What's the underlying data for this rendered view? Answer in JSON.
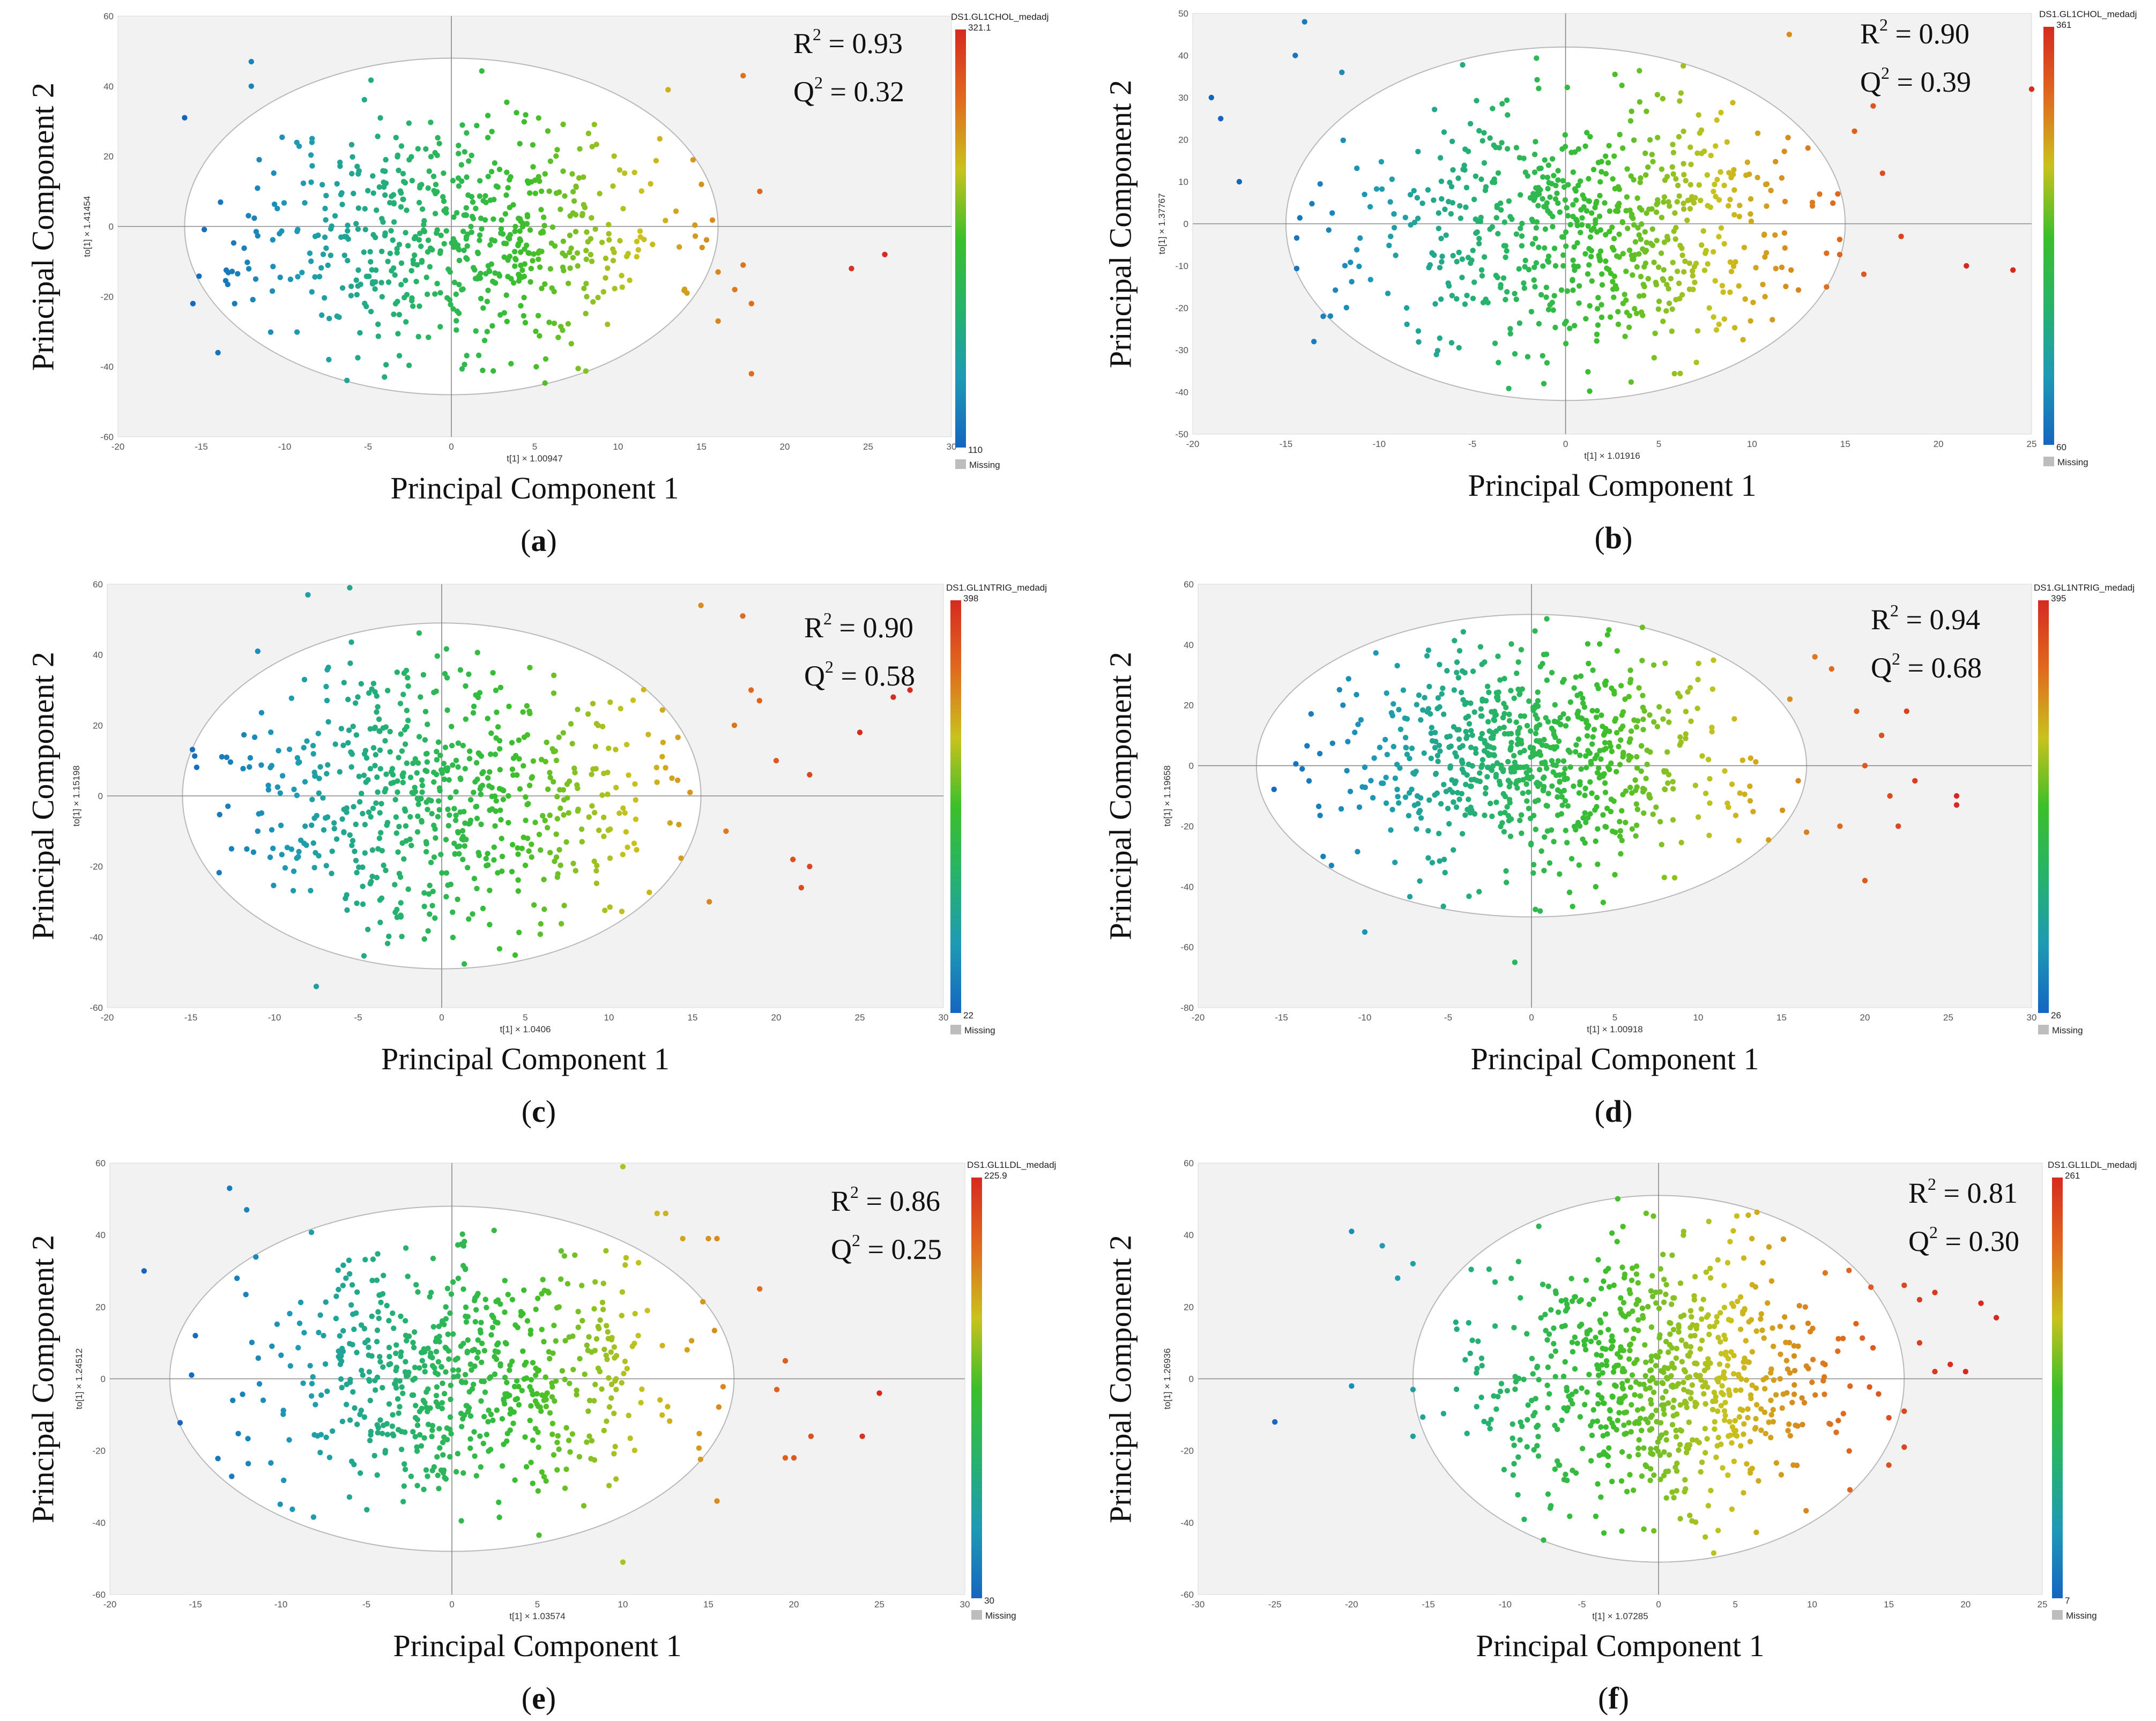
{
  "colors": {
    "plot_bg": "#f2f2f2",
    "ellipse": "#b8b8b8",
    "axis_line": "#888888",
    "missing": "#bdbdbd",
    "scale": [
      "#1565c0",
      "#1e9ab5",
      "#26b36a",
      "#3cbf2a",
      "#c9c21d",
      "#e06a1e",
      "#d62a20"
    ]
  },
  "chart_data": [
    {
      "id": "a",
      "type": "scatter",
      "panel_label": "a",
      "xlabel": "Principal Component 1",
      "ylabel": "Principal Component 2",
      "x_axis_caption": "t[1] × 1.00947",
      "y_axis_caption": "to[1] × 1.41454",
      "xlim": [
        -20,
        30
      ],
      "ylim": [
        -60,
        60
      ],
      "xticks": [
        -20,
        -15,
        -10,
        -5,
        0,
        5,
        10,
        15,
        20,
        25,
        30
      ],
      "yticks": [
        -60,
        -40,
        -20,
        0,
        20,
        40,
        60
      ],
      "ellipse": {
        "cx": 0,
        "cy": 0,
        "rx": 16,
        "ry": 48
      },
      "colorbar": {
        "title": "DS1.GL1CHOL_medadj",
        "max": "321.1",
        "min": "110",
        "missing": "Missing"
      },
      "r2": "0.93",
      "q2": "0.32",
      "points": {
        "n": 620,
        "seed": 11,
        "sx": 6.2,
        "sy": 17,
        "mx": 0.5,
        "my": -2
      },
      "outliers": [
        [
          -16,
          31
        ],
        [
          -15.5,
          -22
        ],
        [
          -14,
          -36
        ],
        [
          -13,
          -22
        ],
        [
          -12,
          47
        ],
        [
          -12,
          40
        ],
        [
          12.5,
          25
        ],
        [
          13,
          39
        ],
        [
          14.5,
          19
        ],
        [
          15,
          12
        ],
        [
          16,
          -13
        ],
        [
          16,
          -27
        ],
        [
          17,
          -18
        ],
        [
          17.5,
          -11
        ],
        [
          17.5,
          43
        ],
        [
          18,
          -22
        ],
        [
          18.5,
          10
        ],
        [
          18,
          -42
        ],
        [
          24,
          -12
        ],
        [
          26,
          -8
        ]
      ]
    },
    {
      "id": "b",
      "type": "scatter",
      "panel_label": "b",
      "xlabel": "Principal Component 1",
      "ylabel": "Principal Component 2",
      "x_axis_caption": "t[1] × 1.01916",
      "y_axis_caption": "to[1] × 1.37767",
      "xlim": [
        -20,
        25
      ],
      "ylim": [
        -50,
        50
      ],
      "xticks": [
        -20,
        -15,
        -10,
        -5,
        0,
        5,
        10,
        15,
        20,
        25
      ],
      "yticks": [
        -50,
        -40,
        -30,
        -20,
        -10,
        0,
        10,
        20,
        30,
        40,
        50
      ],
      "ellipse": {
        "cx": 0,
        "cy": 0,
        "rx": 15,
        "ry": 42
      },
      "colorbar": {
        "title": "DS1.GL1CHOL_medadj",
        "max": "361",
        "min": "60",
        "missing": "Missing"
      },
      "r2": "0.90",
      "q2": "0.39",
      "points": {
        "n": 700,
        "seed": 23,
        "sx": 6.0,
        "sy": 15,
        "mx": 0.8,
        "my": -2
      },
      "outliers": [
        [
          -19,
          30
        ],
        [
          -18.5,
          25
        ],
        [
          -17.5,
          10
        ],
        [
          -14,
          48
        ],
        [
          -14.5,
          40
        ],
        [
          -13,
          -22
        ],
        [
          -13.5,
          -28
        ],
        [
          -12,
          36
        ],
        [
          14,
          -7
        ],
        [
          15.5,
          22
        ],
        [
          16,
          -12
        ],
        [
          16.5,
          28
        ],
        [
          17,
          12
        ],
        [
          18,
          -3
        ],
        [
          21.5,
          -10
        ],
        [
          24,
          -11
        ],
        [
          25,
          32
        ],
        [
          12,
          45
        ],
        [
          13,
          18
        ],
        [
          14,
          -15
        ]
      ]
    },
    {
      "id": "c",
      "type": "scatter",
      "panel_label": "c",
      "xlabel": "Principal Component 1",
      "ylabel": "Principal Component 2",
      "x_axis_caption": "t[1] × 1.0406",
      "y_axis_caption": "to[1] × 1.15198",
      "xlim": [
        -20,
        30
      ],
      "ylim": [
        -60,
        60
      ],
      "xticks": [
        -20,
        -15,
        -10,
        -5,
        0,
        5,
        10,
        15,
        20,
        25,
        30
      ],
      "yticks": [
        -60,
        -40,
        -20,
        0,
        20,
        40,
        60
      ],
      "ellipse": {
        "cx": 0,
        "cy": 0,
        "rx": 15.5,
        "ry": 49
      },
      "colorbar": {
        "title": "DS1.GL1NTRIG_medadj",
        "max": "398",
        "min": "22",
        "missing": "Missing"
      },
      "r2": "0.90",
      "q2": "0.58",
      "points": {
        "n": 640,
        "seed": 37,
        "sx": 6.2,
        "sy": 19,
        "mx": 0,
        "my": 0
      },
      "outliers": [
        [
          -11,
          41
        ],
        [
          -11,
          -10
        ],
        [
          -8,
          57
        ],
        [
          -7.5,
          -54
        ],
        [
          -5.5,
          59
        ],
        [
          15.5,
          54
        ],
        [
          16,
          -30
        ],
        [
          17,
          -10
        ],
        [
          17.5,
          20
        ],
        [
          18,
          51
        ],
        [
          18.5,
          30
        ],
        [
          19,
          27
        ],
        [
          20,
          10
        ],
        [
          21,
          -18
        ],
        [
          21.5,
          -26
        ],
        [
          22,
          -20
        ],
        [
          22,
          6
        ],
        [
          25,
          18
        ],
        [
          27,
          28
        ],
        [
          28,
          30
        ]
      ]
    },
    {
      "id": "d",
      "type": "scatter",
      "panel_label": "d",
      "xlabel": "Principal Component 1",
      "ylabel": "Principal Component 2",
      "x_axis_caption": "t[1] × 1.00918",
      "y_axis_caption": "to[1] × 1.19658",
      "xlim": [
        -20,
        30
      ],
      "ylim": [
        -80,
        60
      ],
      "xticks": [
        -20,
        -15,
        -10,
        -5,
        0,
        5,
        10,
        15,
        20,
        25,
        30
      ],
      "yticks": [
        -80,
        -60,
        -40,
        -20,
        0,
        20,
        40,
        60
      ],
      "ellipse": {
        "cx": 0,
        "cy": 0,
        "rx": 16.5,
        "ry": 50
      },
      "colorbar": {
        "title": "DS1.GL1NTRIG_medadj",
        "max": "395",
        "min": "26",
        "missing": "Missing"
      },
      "r2": "0.94",
      "q2": "0.68",
      "points": {
        "n": 760,
        "seed": 53,
        "sx": 6.0,
        "sy": 19,
        "mx": 0.5,
        "my": 2
      },
      "outliers": [
        [
          -12.5,
          -30
        ],
        [
          -12,
          -33
        ],
        [
          -10,
          -55
        ],
        [
          -1,
          -65
        ],
        [
          15.5,
          22
        ],
        [
          16,
          -5
        ],
        [
          16.5,
          -22
        ],
        [
          17,
          36
        ],
        [
          18,
          32
        ],
        [
          18.5,
          -20
        ],
        [
          19.5,
          18
        ],
        [
          20,
          0
        ],
        [
          20,
          -38
        ],
        [
          21,
          10
        ],
        [
          21.5,
          -10
        ],
        [
          22,
          -20
        ],
        [
          22.5,
          18
        ],
        [
          25.5,
          -10
        ],
        [
          25.5,
          -13
        ],
        [
          23,
          -5
        ]
      ]
    },
    {
      "id": "e",
      "type": "scatter",
      "panel_label": "e",
      "xlabel": "Principal Component 1",
      "ylabel": "Principal Component 2",
      "x_axis_caption": "t[1] × 1.03574",
      "y_axis_caption": "to[1] × 1.24512",
      "xlim": [
        -20,
        30
      ],
      "ylim": [
        -60,
        60
      ],
      "xticks": [
        -20,
        -15,
        -10,
        -5,
        0,
        5,
        10,
        15,
        20,
        25,
        30
      ],
      "yticks": [
        -60,
        -40,
        -20,
        0,
        20,
        40,
        60
      ],
      "ellipse": {
        "cx": 0,
        "cy": 0,
        "rx": 16.5,
        "ry": 48
      },
      "colorbar": {
        "title": "DS1.GL1LDL_medadj",
        "max": "225.9",
        "min": "30",
        "missing": "Missing"
      },
      "r2": "0.86",
      "q2": "0.25",
      "points": {
        "n": 660,
        "seed": 71,
        "sx": 6.5,
        "sy": 18,
        "mx": 0.5,
        "my": 0
      },
      "outliers": [
        [
          -18,
          30
        ],
        [
          -15,
          12
        ],
        [
          -13,
          53
        ],
        [
          -12,
          47
        ],
        [
          12,
          46
        ],
        [
          12.5,
          46
        ],
        [
          13.5,
          39
        ],
        [
          15,
          39
        ],
        [
          15.5,
          39
        ],
        [
          15.5,
          -34
        ],
        [
          18,
          25
        ],
        [
          19,
          -3
        ],
        [
          19.5,
          5
        ],
        [
          19.5,
          -22
        ],
        [
          20,
          -22
        ],
        [
          21,
          -16
        ],
        [
          24,
          -16
        ],
        [
          25,
          -4
        ],
        [
          10,
          -51
        ],
        [
          10,
          59
        ]
      ]
    },
    {
      "id": "f",
      "type": "scatter",
      "panel_label": "f",
      "xlabel": "Principal Component 1",
      "ylabel": "Principal Component 2",
      "x_axis_caption": "t[1] × 1.07285",
      "y_axis_caption": "to[1] × 1.26936",
      "xlim": [
        -30,
        25
      ],
      "ylim": [
        -60,
        60
      ],
      "xticks": [
        -30,
        -25,
        -20,
        -15,
        -10,
        -5,
        0,
        5,
        10,
        15,
        20,
        25
      ],
      "yticks": [
        -60,
        -40,
        -20,
        0,
        20,
        40,
        60
      ],
      "ellipse": {
        "cx": 0,
        "cy": 0,
        "rx": 16,
        "ry": 51
      },
      "colorbar": {
        "title": "DS1.GL1LDL_medadj",
        "max": "261",
        "min": "7",
        "missing": "Missing"
      },
      "r2": "0.81",
      "q2": "0.30",
      "points": {
        "n": 780,
        "seed": 97,
        "sx": 6.2,
        "sy": 19,
        "mx": 0,
        "my": 0
      },
      "outliers": [
        [
          -25,
          -12
        ],
        [
          -20,
          41
        ],
        [
          -20,
          -2
        ],
        [
          -18,
          37
        ],
        [
          -17,
          28
        ],
        [
          -16,
          32
        ],
        [
          -16,
          -3
        ],
        [
          -16,
          -16
        ],
        [
          16,
          26
        ],
        [
          17,
          22
        ],
        [
          17,
          10
        ],
        [
          18,
          2
        ],
        [
          19,
          4
        ],
        [
          20,
          2
        ],
        [
          21,
          21
        ],
        [
          22,
          17
        ],
        [
          16,
          -9
        ],
        [
          16,
          -19
        ],
        [
          15,
          -24
        ],
        [
          18,
          24
        ]
      ]
    }
  ]
}
